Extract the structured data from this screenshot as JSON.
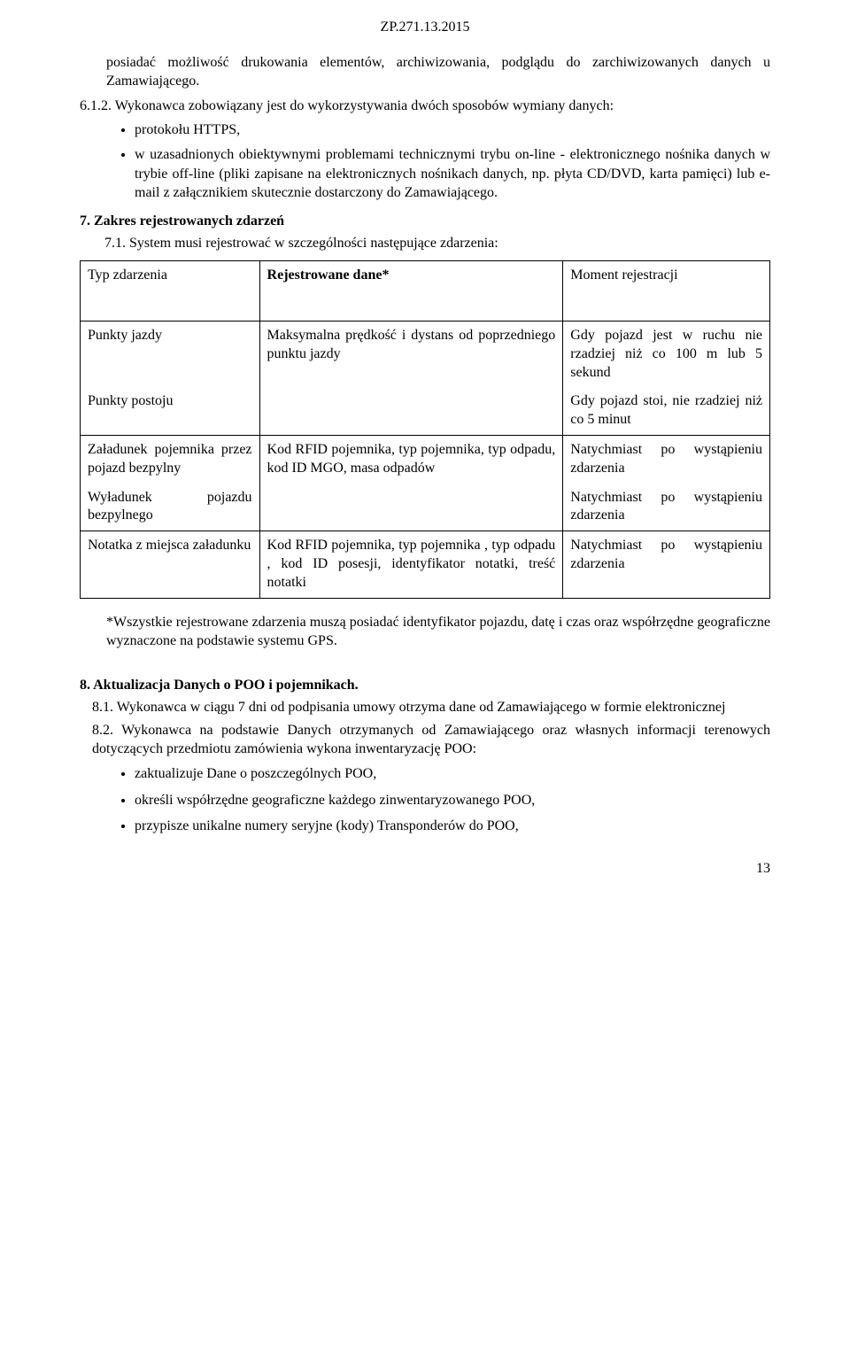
{
  "header": {
    "doc_ref": "ZP.271.13.2015"
  },
  "para1": "posiadać możliwość drukowania elementów, archiwizowania, podglądu do zarchiwizowanych danych u Zamawiającego.",
  "item612_num": "6.1.2.",
  "item612_text": "Wykonawca zobowiązany jest do wykorzystywania dwóch sposobów wymiany danych:",
  "bullets612": {
    "b1": "protokołu HTTPS,",
    "b2": "w uzasadnionych obiektywnymi problemami technicznymi trybu on-line - elektronicznego nośnika danych w trybie off-line (pliki zapisane na elektronicznych nośnikach danych, np. płyta CD/DVD, karta pamięci) lub e-mail z załącznikiem skutecznie dostarczony do Zamawiającego."
  },
  "sec7": {
    "head": "7. Zakres rejestrowanych zdarzeń",
    "sub71": "7.1. System musi rejestrować w szczególności następujące zdarzenia:"
  },
  "table": {
    "head": {
      "c1": "Typ zdarzenia",
      "c2": "Rejestrowane dane*",
      "c3": "Moment rejestracji"
    },
    "r1": {
      "c1": "Punkty jazdy",
      "c2": "Maksymalna prędkość i dystans od poprzedniego punktu jazdy",
      "c3": "Gdy pojazd jest w ruchu nie rzadziej niż co 100 m lub 5 sekund"
    },
    "r2": {
      "c1": "Punkty postoju",
      "c2": "",
      "c3": "Gdy pojazd stoi, nie rzadziej niż co 5 minut"
    },
    "r3": {
      "c1": "Załadunek pojemnika przez pojazd bezpylny",
      "c2": "Kod RFID pojemnika, typ pojemnika, typ odpadu, kod ID MGO, masa odpadów",
      "c3": "Natychmiast po wystąpieniu zdarzenia"
    },
    "r4": {
      "c1": "Wyładunek pojazdu bezpylnego",
      "c2": "",
      "c3": "Natychmiast po wystąpieniu zdarzenia"
    },
    "r5": {
      "c1": "Notatka z miejsca załadunku",
      "c2": "Kod RFID pojemnika, typ pojemnika , typ odpadu , kod ID posesji, identyfikator notatki, treść notatki",
      "c3": "Natychmiast po wystąpieniu zdarzenia"
    }
  },
  "footnote": "*Wszystkie rejestrowane zdarzenia muszą posiadać identyfikator pojazdu, datę i czas oraz współrzędne geograficzne wyznaczone na podstawie systemu GPS.",
  "sec8": {
    "head": "8. Aktualizacja Danych o POO i pojemnikach.",
    "sub81": "8.1. Wykonawca w ciągu 7 dni od podpisania umowy otrzyma dane od Zamawiającego w formie elektronicznej",
    "sub82": "8.2.  Wykonawca na podstawie Danych otrzymanych od Zamawiającego oraz własnych informacji terenowych dotyczących przedmiotu zamówienia wykona inwentaryzację POO:",
    "b1": "zaktualizuje Dane o poszczególnych POO,",
    "b2": "określi współrzędne geograficzne każdego zinwentaryzowanego POO,",
    "b3": "przypisze unikalne numery seryjne (kody) Transponderów do POO,"
  },
  "page_num": "13"
}
